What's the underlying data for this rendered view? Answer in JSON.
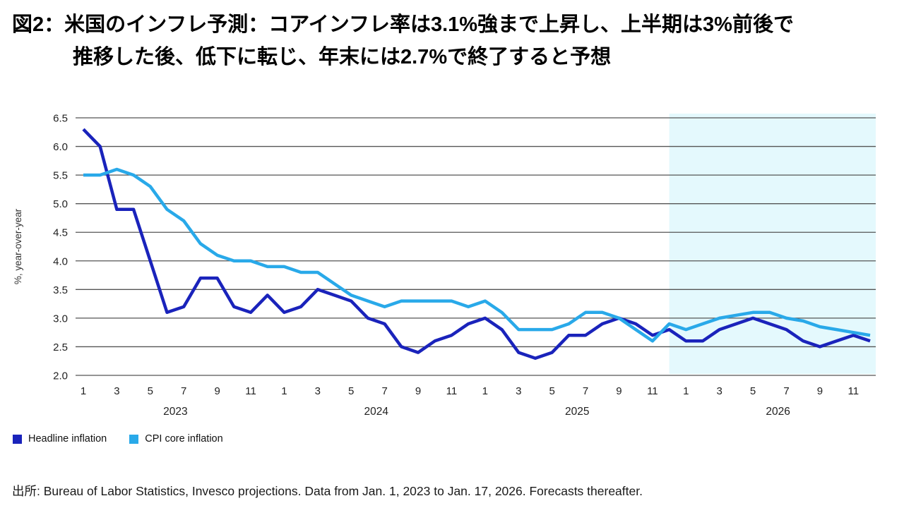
{
  "title": {
    "line1": "図2：米国のインフレ予測：コアインフレ率は3.1%強まで上昇し、上半期は3%前後で",
    "line2": "推移した後、低下に転じ、年末には2.7%で終了すると予想"
  },
  "source_note": "出所: Bureau of Labor Statistics, Invesco projections. Data from Jan. 1, 2023 to Jan. 17, 2026. Forecasts thereafter.",
  "legend": {
    "items": [
      {
        "label": "Headline inflation",
        "color": "#1A23BB"
      },
      {
        "label": "CPI core inflation",
        "color": "#29A9E9"
      }
    ]
  },
  "chart_data": {
    "type": "line",
    "ylabel": "%, year-over-year",
    "ylim": [
      2.0,
      6.5
    ],
    "ytick_step": 0.5,
    "grid": true,
    "grid_color": "#555555",
    "axis_text_color": "#222222",
    "years": [
      "2023",
      "2024",
      "2025",
      "2026"
    ],
    "month_ticks": [
      1,
      3,
      5,
      7,
      9,
      11
    ],
    "months_per_year": 12,
    "series": [
      {
        "name": "Headline inflation",
        "color": "#1A23BB",
        "values": [
          6.3,
          6.0,
          4.9,
          4.9,
          4.0,
          3.1,
          3.2,
          3.7,
          3.7,
          3.2,
          3.1,
          3.4,
          3.1,
          3.2,
          3.5,
          3.4,
          3.3,
          3.0,
          2.9,
          2.5,
          2.4,
          2.6,
          2.7,
          2.9,
          3.0,
          2.8,
          2.4,
          2.3,
          2.4,
          2.7,
          2.7,
          2.9,
          3.0,
          2.9,
          2.7,
          2.8,
          2.6,
          2.6,
          2.8,
          2.9,
          3.0,
          2.9,
          2.8,
          2.6,
          2.5,
          2.6,
          2.7,
          2.6
        ]
      },
      {
        "name": "CPI core inflation",
        "color": "#29A9E9",
        "values": [
          5.5,
          5.5,
          5.6,
          5.5,
          5.3,
          4.9,
          4.7,
          4.3,
          4.1,
          4.0,
          4.0,
          3.9,
          3.9,
          3.8,
          3.8,
          3.6,
          3.4,
          3.3,
          3.2,
          3.3,
          3.3,
          3.3,
          3.3,
          3.2,
          3.3,
          3.1,
          2.8,
          2.8,
          2.8,
          2.9,
          3.1,
          3.1,
          3.0,
          2.8,
          2.6,
          2.9,
          2.8,
          2.9,
          3.0,
          3.05,
          3.1,
          3.1,
          3.0,
          2.95,
          2.85,
          2.8,
          2.75,
          2.7
        ]
      }
    ],
    "forecast": {
      "start_month_index": 35,
      "shade_color": "#E4F9FD",
      "note": "Forecasts thereafter"
    }
  }
}
